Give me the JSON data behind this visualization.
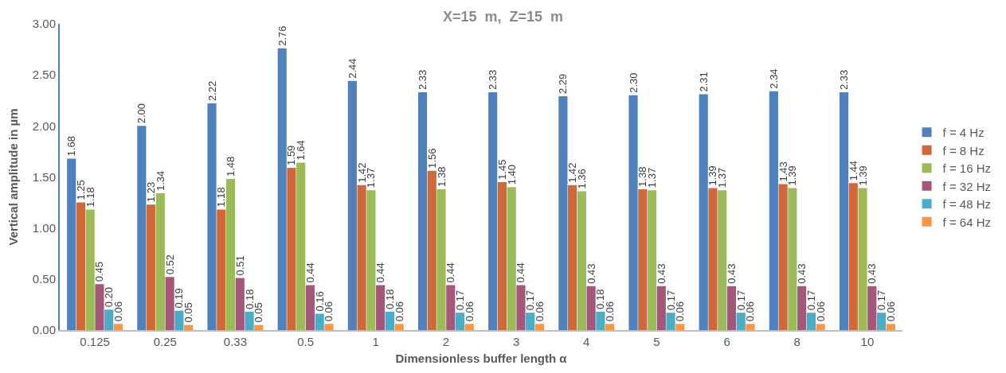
{
  "chart_data": {
    "type": "bar",
    "title": "X=15  m,  Z=15  m",
    "xlabel": "Dimensionless buffer length α",
    "ylabel": "Vertical amplitude in µm",
    "categories": [
      "0.125",
      "0.25",
      "0.33",
      "0.5",
      "1",
      "2",
      "3",
      "4",
      "5",
      "6",
      "8",
      "10"
    ],
    "ylim": [
      0,
      3
    ],
    "yticks": [
      "0.00",
      "0.50",
      "1.00",
      "1.50",
      "2.00",
      "2.50",
      "3.00"
    ],
    "legend": "right",
    "series": [
      {
        "name": "f = 4 Hz",
        "color": "#4f81bd",
        "values": [
          1.68,
          2.0,
          2.22,
          2.76,
          2.44,
          2.33,
          2.33,
          2.29,
          2.3,
          2.31,
          2.34,
          2.33
        ],
        "value_labels": [
          "1.68",
          "2.00",
          "2.22",
          "2.76",
          "2.44",
          "2.33",
          "2.33",
          "2.29",
          "2.30",
          "2.31",
          "2.34",
          "2.33"
        ]
      },
      {
        "name": "f = 8 Hz",
        "color": "#d0693a",
        "values": [
          1.25,
          1.23,
          1.18,
          1.59,
          1.42,
          1.56,
          1.45,
          1.42,
          1.38,
          1.39,
          1.43,
          1.44
        ],
        "value_labels": [
          "1.25",
          "1.23",
          "1.18",
          "1.59",
          "1.42",
          "1.56",
          "1.45",
          "1.42",
          "1.38",
          "1.39",
          "1.43",
          "1.44"
        ]
      },
      {
        "name": "f = 16 Hz",
        "color": "#9bbb59",
        "values": [
          1.18,
          1.34,
          1.48,
          1.64,
          1.37,
          1.38,
          1.4,
          1.36,
          1.37,
          1.37,
          1.39,
          1.39
        ],
        "value_labels": [
          "1.18",
          "1.34",
          "1.48",
          "1.64",
          "1.37",
          "1.38",
          "1.40",
          "1.36",
          "1.37",
          "1.37",
          "1.39",
          "1.39"
        ]
      },
      {
        "name": "f = 32 Hz",
        "color": "#a5577b",
        "values": [
          0.45,
          0.52,
          0.51,
          0.44,
          0.44,
          0.44,
          0.44,
          0.43,
          0.43,
          0.43,
          0.43,
          0.43
        ],
        "value_labels": [
          "0.45",
          "0.52",
          "0.51",
          "0.44",
          "0.44",
          "0.44",
          "0.44",
          "0.43",
          "0.43",
          "0.43",
          "0.43",
          "0.43"
        ]
      },
      {
        "name": "f = 48 Hz",
        "color": "#4bacc6",
        "values": [
          0.2,
          0.19,
          0.18,
          0.16,
          0.18,
          0.17,
          0.17,
          0.18,
          0.17,
          0.17,
          0.17,
          0.17
        ],
        "value_labels": [
          "0.20",
          "0.19",
          "0.18",
          "0.16",
          "0.18",
          "0.17",
          "0.17",
          "0.18",
          "0.17",
          "0.17",
          "0.17",
          "0.17"
        ]
      },
      {
        "name": "f = 64 Hz",
        "color": "#f79646",
        "values": [
          0.06,
          0.05,
          0.05,
          0.06,
          0.06,
          0.06,
          0.06,
          0.06,
          0.06,
          0.06,
          0.06,
          0.06
        ],
        "value_labels": [
          "0.06",
          "0.05",
          "0.05",
          "0.06",
          "0.06",
          "0.06",
          "0.06",
          "0.06",
          "0.06",
          "0.06",
          "0.06",
          "0.06"
        ]
      }
    ]
  }
}
